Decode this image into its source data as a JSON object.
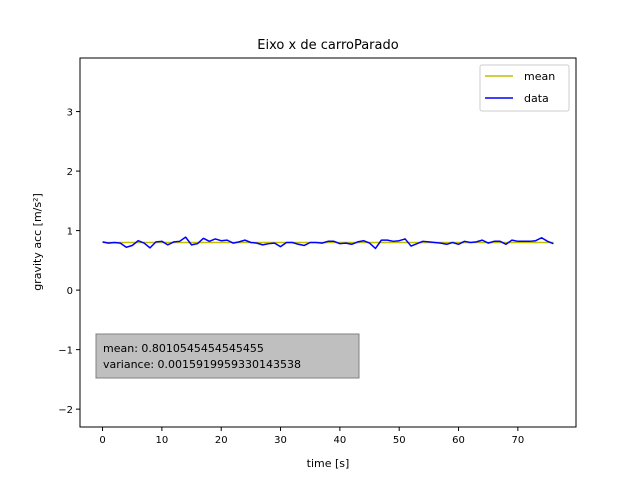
{
  "chart_data": {
    "type": "line",
    "title": "Eixo x de carroParado",
    "xlabel": "time [s]",
    "ylabel": "gravity acc [m/s²]",
    "xlim": [
      -3.8,
      79.8
    ],
    "ylim": [
      -2.3,
      3.9
    ],
    "xticks": [
      0,
      10,
      20,
      30,
      40,
      50,
      60,
      70
    ],
    "yticks": [
      -2,
      -1,
      0,
      1,
      2,
      3
    ],
    "ytick_labels": [
      "−2",
      "−1",
      "0",
      "1",
      "2",
      "3"
    ],
    "grid": false,
    "legend": {
      "position": "top-right",
      "entries": [
        "mean",
        "data"
      ]
    },
    "series": [
      {
        "name": "mean",
        "color": "#bfbf00",
        "x": [
          0,
          76
        ],
        "y": [
          0.801,
          0.801
        ]
      },
      {
        "name": "data",
        "color": "#0000ff",
        "x": [
          0,
          1,
          2,
          3,
          4,
          5,
          6,
          7,
          8,
          9,
          10,
          11,
          12,
          13,
          14,
          15,
          16,
          17,
          18,
          19,
          20,
          21,
          22,
          23,
          24,
          25,
          26,
          27,
          28,
          29,
          30,
          31,
          32,
          33,
          34,
          35,
          36,
          37,
          38,
          39,
          40,
          41,
          42,
          43,
          44,
          45,
          46,
          47,
          48,
          49,
          50,
          51,
          52,
          53,
          54,
          55,
          56,
          57,
          58,
          59,
          60,
          61,
          62,
          63,
          64,
          65,
          66,
          67,
          68,
          69,
          70,
          71,
          72,
          73,
          74,
          75,
          76
        ],
        "y": [
          0.81,
          0.79,
          0.8,
          0.79,
          0.72,
          0.75,
          0.83,
          0.79,
          0.71,
          0.81,
          0.82,
          0.76,
          0.81,
          0.82,
          0.89,
          0.76,
          0.78,
          0.87,
          0.82,
          0.86,
          0.83,
          0.84,
          0.79,
          0.81,
          0.84,
          0.8,
          0.79,
          0.76,
          0.78,
          0.79,
          0.73,
          0.8,
          0.8,
          0.77,
          0.75,
          0.8,
          0.8,
          0.79,
          0.82,
          0.82,
          0.78,
          0.79,
          0.77,
          0.81,
          0.83,
          0.79,
          0.7,
          0.84,
          0.84,
          0.82,
          0.83,
          0.86,
          0.74,
          0.78,
          0.82,
          0.81,
          0.8,
          0.79,
          0.77,
          0.8,
          0.77,
          0.82,
          0.8,
          0.81,
          0.84,
          0.79,
          0.82,
          0.82,
          0.77,
          0.84,
          0.82,
          0.82,
          0.82,
          0.83,
          0.88,
          0.82,
          0.78
        ]
      }
    ],
    "annotation": {
      "lines": [
        "mean: 0.8010545454545455",
        "variance: 0.0015919959330143538"
      ]
    }
  }
}
